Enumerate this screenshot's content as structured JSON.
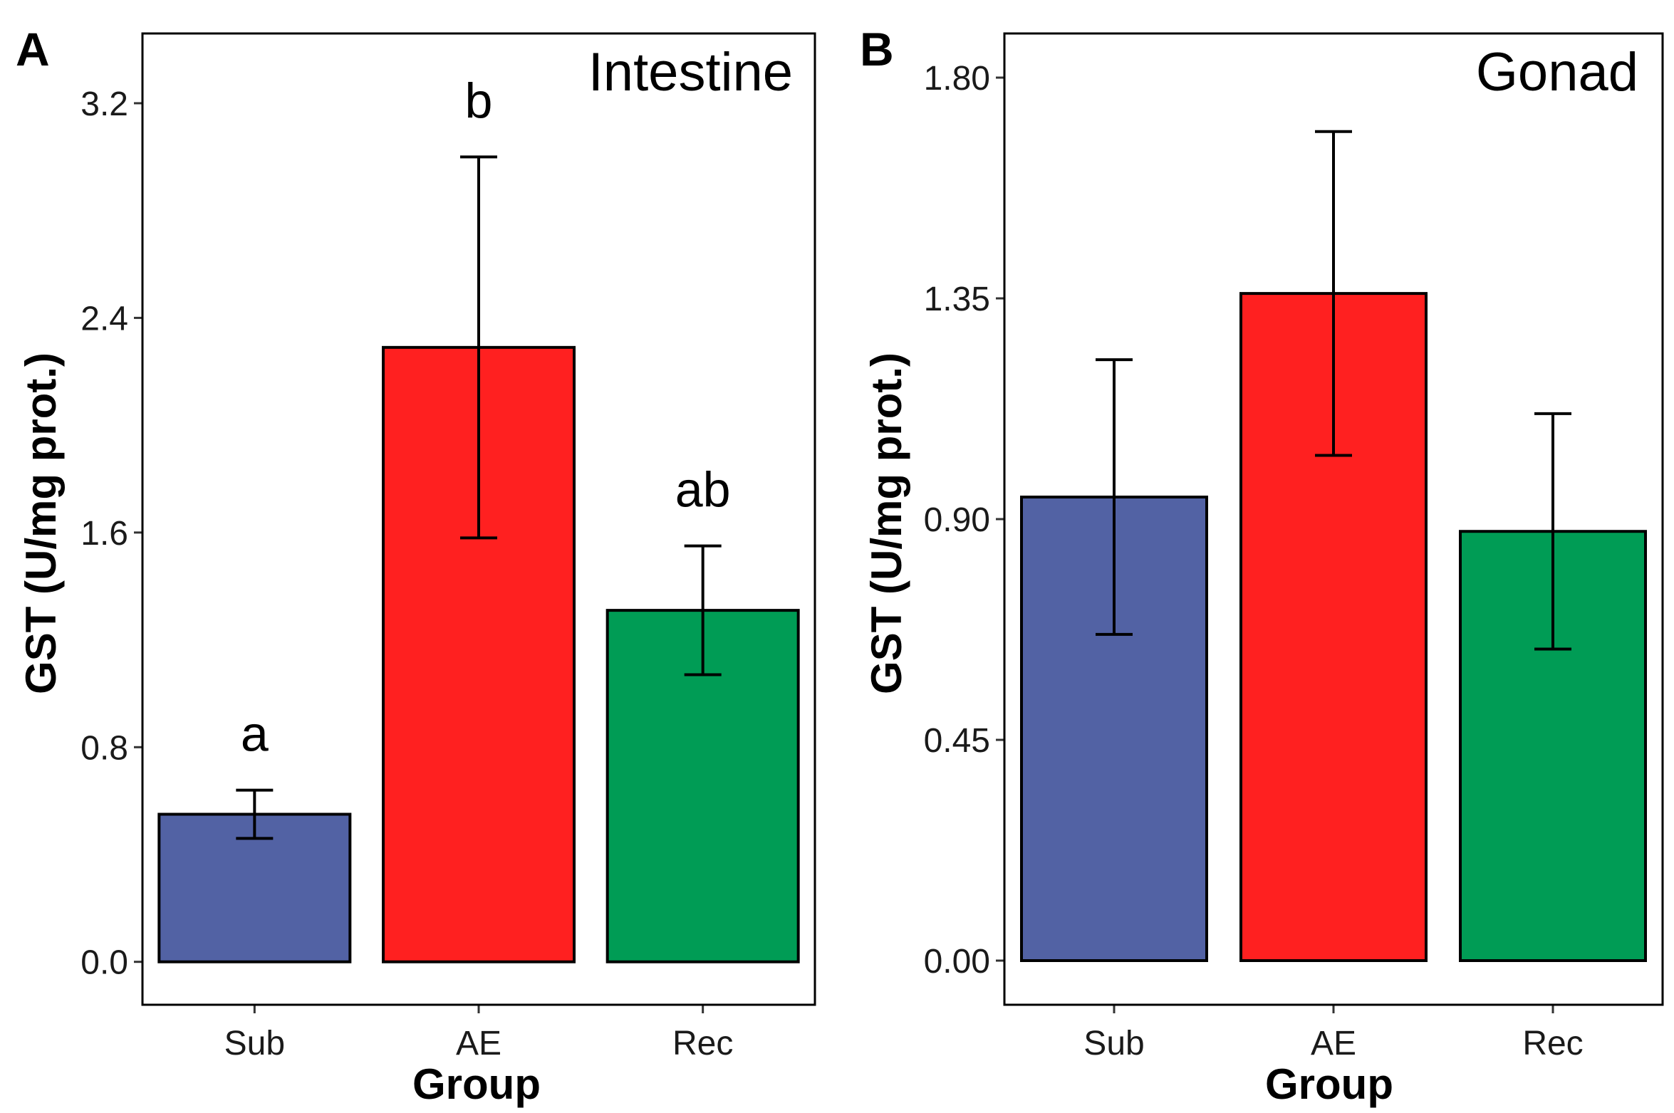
{
  "chart_data": [
    {
      "type": "bar",
      "panel": "A",
      "title": "Intestine",
      "xlabel": "Group",
      "ylabel": "GST (U/mg prot.)",
      "categories": [
        "Sub",
        "AE",
        "Rec"
      ],
      "values": [
        0.55,
        2.29,
        1.31
      ],
      "errors": [
        0.09,
        0.71,
        0.24
      ],
      "significance": [
        "a",
        "b",
        "ab"
      ],
      "colors": [
        "#5262A4",
        "#FF2020",
        "#009C55"
      ],
      "ylim": [
        -0.16,
        3.46
      ],
      "yticks": [
        0.0,
        0.8,
        1.6,
        2.4,
        3.2
      ],
      "ytick_labels": [
        "0.0",
        "0.8",
        "1.6",
        "2.4",
        "3.2"
      ],
      "grid": false
    },
    {
      "type": "bar",
      "panel": "B",
      "title": "Gonad",
      "xlabel": "Group",
      "ylabel": "GST (U/mg prot.)",
      "categories": [
        "Sub",
        "AE",
        "Rec"
      ],
      "values": [
        0.945,
        1.36,
        0.875
      ],
      "errors": [
        0.28,
        0.33,
        0.24
      ],
      "significance": [],
      "colors": [
        "#5262A4",
        "#FF2020",
        "#009C55"
      ],
      "ylim": [
        -0.09,
        1.89
      ],
      "yticks": [
        0.0,
        0.45,
        0.9,
        1.35,
        1.8
      ],
      "ytick_labels": [
        "0.00",
        "0.45",
        "0.90",
        "1.35",
        "1.80"
      ],
      "grid": false
    }
  ]
}
